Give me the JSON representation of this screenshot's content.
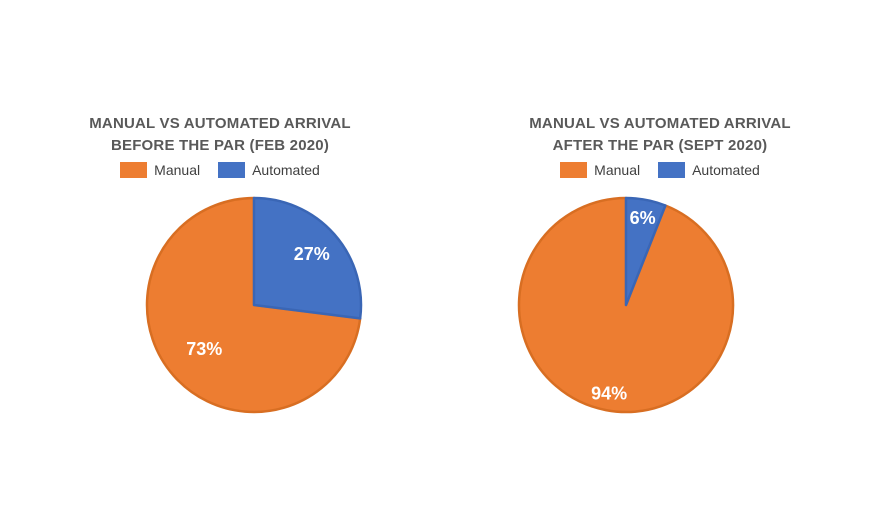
{
  "colors": {
    "manual": "#ED7D31",
    "automated": "#4472C4"
  },
  "chart_data": [
    {
      "type": "pie",
      "title": [
        "MANUAL VS AUTOMATED ARRIVAL",
        "BEFORE THE PAR (FEB 2020)"
      ],
      "legend": {
        "position": "top",
        "entries": [
          "Manual",
          "Automated"
        ]
      },
      "slices": [
        {
          "name": "Manual",
          "value": 73,
          "label": "73%"
        },
        {
          "name": "Automated",
          "value": 27,
          "label": "27%"
        }
      ]
    },
    {
      "type": "pie",
      "title": [
        "MANUAL VS AUTOMATED ARRIVAL",
        "AFTER THE PAR (SEPT 2020)"
      ],
      "legend": {
        "position": "top",
        "entries": [
          "Manual",
          "Automated"
        ]
      },
      "slices": [
        {
          "name": "Manual",
          "value": 94,
          "label": "94%"
        },
        {
          "name": "Automated",
          "value": 6,
          "label": "6%"
        }
      ]
    }
  ]
}
